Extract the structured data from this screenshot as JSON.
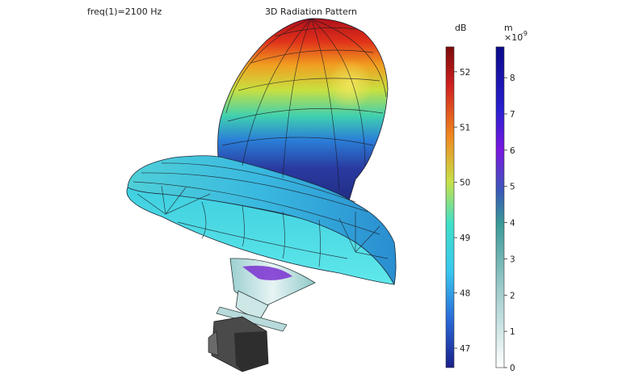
{
  "header": {
    "freq_label": "freq(1)=2100 Hz",
    "title": "3D Radiation Pattern"
  },
  "colorbars": [
    {
      "id": "db",
      "unit": "dB",
      "ticks": [
        "52",
        "51",
        "50",
        "49",
        "48",
        "47"
      ],
      "tick_values": [
        52,
        51,
        50,
        49,
        48,
        47
      ],
      "range": [
        46.65,
        52.45
      ]
    },
    {
      "id": "disp",
      "unit": "m",
      "exponent_base": "×10",
      "exponent": "-9",
      "ticks": [
        "8",
        "7",
        "6",
        "5",
        "4",
        "3",
        "2",
        "1",
        "0"
      ],
      "tick_values": [
        8,
        7,
        6,
        5,
        4,
        3,
        2,
        1,
        0
      ],
      "range": [
        0,
        8.85
      ]
    }
  ],
  "colors": {
    "jet_top": "#8b0a0a",
    "jet_bottom": "#1a1f8a",
    "disp_top": "#0a0a8a",
    "disp_bottom": "#ffffff",
    "speaker_dark": "#3a3a3a"
  }
}
